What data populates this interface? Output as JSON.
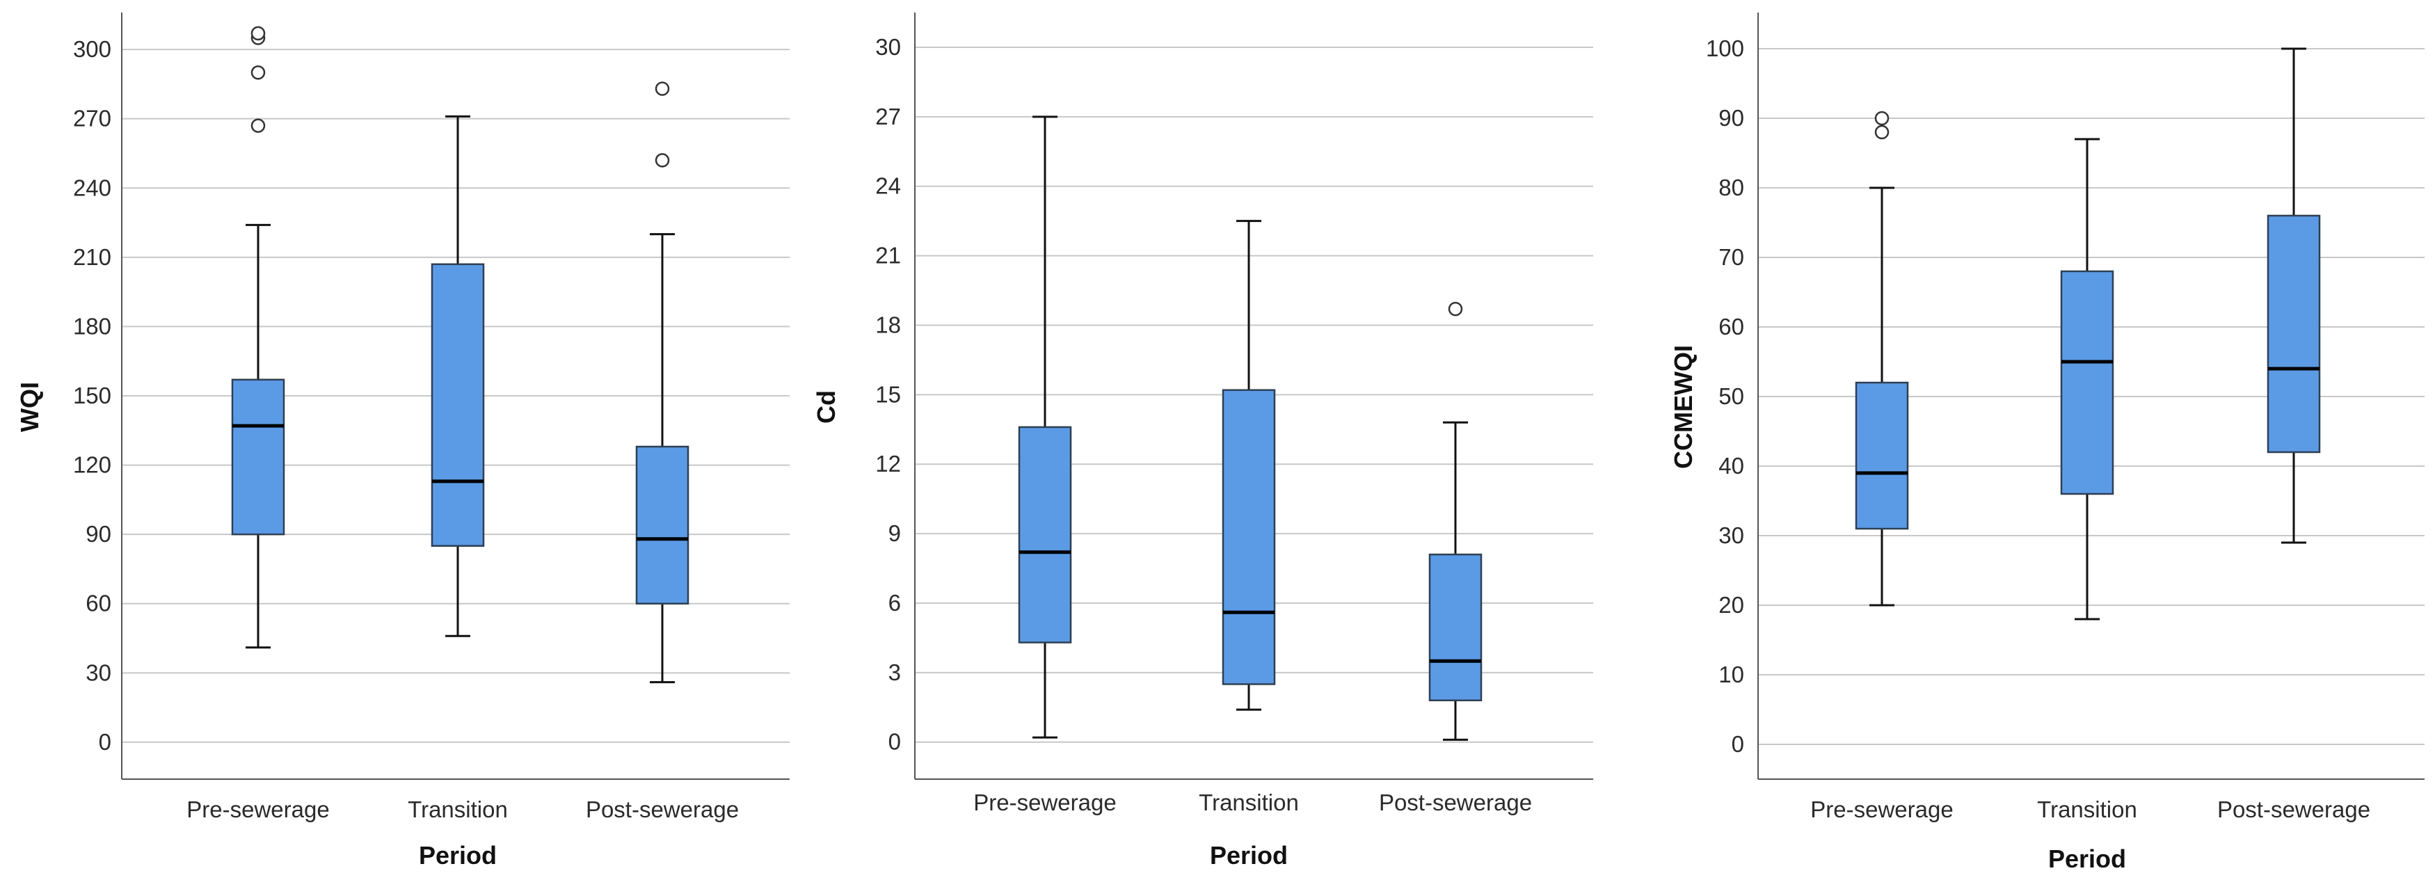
{
  "colors": {
    "box_fill": "#5b9be6",
    "box_stroke": "#2f3f52",
    "median": "#000000",
    "grid": "#c8c8c8",
    "axis": "#555555"
  },
  "chart_data": [
    {
      "type": "box",
      "title": "",
      "xlabel": "Period",
      "ylabel": "WQI",
      "categories": [
        "Pre-sewerage",
        "Transition",
        "Post-sewerage"
      ],
      "ylim": [
        -16,
        316
      ],
      "yticks": [
        0,
        30,
        60,
        90,
        120,
        150,
        180,
        210,
        240,
        270,
        300
      ],
      "grid": true,
      "boxes": [
        {
          "category": "Pre-sewerage",
          "min": 41,
          "q1": 90,
          "median": 137,
          "q3": 157,
          "max": 224,
          "outliers": [
            267,
            290,
            305,
            307
          ]
        },
        {
          "category": "Transition",
          "min": 46,
          "q1": 85,
          "median": 113,
          "q3": 207,
          "max": 271,
          "outliers": []
        },
        {
          "category": "Post-sewerage",
          "min": 26,
          "q1": 60,
          "median": 88,
          "q3": 128,
          "max": 220,
          "outliers": [
            252,
            283
          ]
        }
      ]
    },
    {
      "type": "box",
      "title": "",
      "xlabel": "Period",
      "ylabel": "Cd",
      "categories": [
        "Pre-sewerage",
        "Transition",
        "Post-sewerage"
      ],
      "ylim": [
        -1.6,
        31.5
      ],
      "yticks": [
        0,
        3,
        6,
        9,
        12,
        15,
        18,
        21,
        24,
        27,
        30
      ],
      "grid": true,
      "boxes": [
        {
          "category": "Pre-sewerage",
          "min": 0.2,
          "q1": 4.3,
          "median": 8.2,
          "q3": 13.6,
          "max": 27.0,
          "outliers": []
        },
        {
          "category": "Transition",
          "min": 1.4,
          "q1": 2.5,
          "median": 5.6,
          "q3": 15.2,
          "max": 22.5,
          "outliers": []
        },
        {
          "category": "Post-sewerage",
          "min": 0.1,
          "q1": 1.8,
          "median": 3.5,
          "q3": 8.1,
          "max": 13.8,
          "outliers": [
            18.7
          ]
        }
      ]
    },
    {
      "type": "box",
      "title": "",
      "xlabel": "Period",
      "ylabel": "CCMEWQI",
      "categories": [
        "Pre-sewerage",
        "Transition",
        "Post-sewerage"
      ],
      "ylim": [
        -5,
        105.2
      ],
      "yticks": [
        0,
        10,
        20,
        30,
        40,
        50,
        60,
        70,
        80,
        90,
        100
      ],
      "grid": true,
      "boxes": [
        {
          "category": "Pre-sewerage",
          "min": 20,
          "q1": 31,
          "median": 39,
          "q3": 52,
          "max": 80,
          "outliers": [
            88,
            90
          ]
        },
        {
          "category": "Transition",
          "min": 18,
          "q1": 36,
          "median": 55,
          "q3": 68,
          "max": 87,
          "outliers": []
        },
        {
          "category": "Post-sewerage",
          "min": 29,
          "q1": 42,
          "median": 54,
          "q3": 76,
          "max": 100,
          "outliers": []
        }
      ]
    }
  ]
}
